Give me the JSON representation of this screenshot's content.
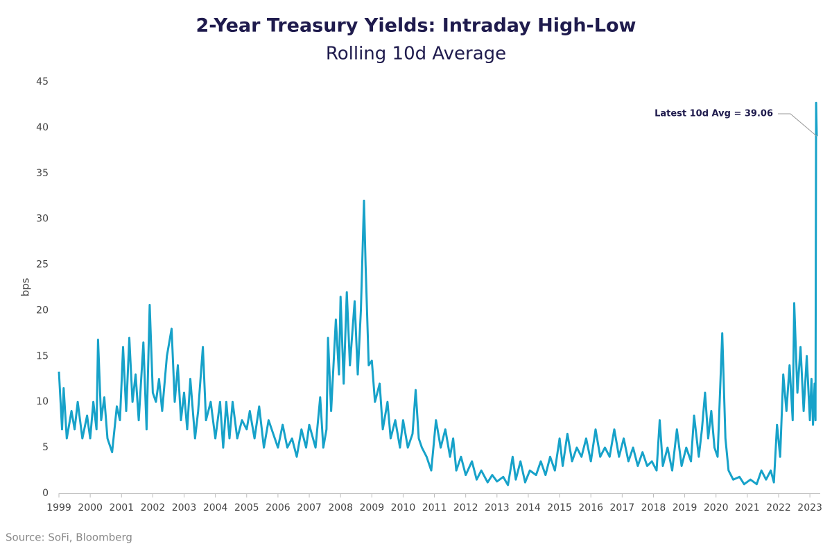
{
  "chart_data": {
    "type": "line",
    "title": "2-Year Treasury Yields: Intraday High-Low",
    "subtitle": "Rolling 10d Average",
    "y_label": "bps",
    "annotation": "Latest 10d Avg = 39.06",
    "source": "Source: SoFi, Bloomberg",
    "color": "#17a2c9",
    "grid": false,
    "xlim": [
      1999,
      2023.33
    ],
    "xticks": [
      1999,
      2000,
      2001,
      2002,
      2003,
      2004,
      2005,
      2006,
      2007,
      2008,
      2009,
      2010,
      2011,
      2012,
      2013,
      2014,
      2015,
      2016,
      2017,
      2018,
      2019,
      2020,
      2021,
      2022,
      2023
    ],
    "ylim": [
      0,
      45
    ],
    "yticks": [
      0,
      5,
      10,
      15,
      20,
      25,
      30,
      35,
      40,
      45
    ],
    "x": [
      1999.0,
      1999.1,
      1999.15,
      1999.25,
      1999.4,
      1999.5,
      1999.6,
      1999.75,
      1999.9,
      2000.0,
      2000.1,
      2000.2,
      2000.25,
      2000.35,
      2000.45,
      2000.55,
      2000.7,
      2000.85,
      2000.95,
      2001.0,
      2001.05,
      2001.15,
      2001.25,
      2001.35,
      2001.45,
      2001.55,
      2001.7,
      2001.8,
      2001.9,
      2002.0,
      2002.1,
      2002.2,
      2002.3,
      2002.45,
      2002.6,
      2002.7,
      2002.8,
      2002.9,
      2003.0,
      2003.1,
      2003.2,
      2003.35,
      2003.45,
      2003.6,
      2003.7,
      2003.85,
      2004.0,
      2004.15,
      2004.25,
      2004.35,
      2004.45,
      2004.55,
      2004.7,
      2004.85,
      2005.0,
      2005.1,
      2005.25,
      2005.4,
      2005.55,
      2005.7,
      2005.85,
      2006.0,
      2006.15,
      2006.3,
      2006.45,
      2006.6,
      2006.75,
      2006.9,
      2007.0,
      2007.2,
      2007.35,
      2007.45,
      2007.55,
      2007.6,
      2007.7,
      2007.85,
      2007.95,
      2008.0,
      2008.1,
      2008.2,
      2008.3,
      2008.45,
      2008.55,
      2008.65,
      2008.75,
      2008.8,
      2008.9,
      2009.0,
      2009.1,
      2009.25,
      2009.35,
      2009.5,
      2009.6,
      2009.75,
      2009.9,
      2010.0,
      2010.15,
      2010.3,
      2010.4,
      2010.5,
      2010.6,
      2010.75,
      2010.9,
      2011.05,
      2011.2,
      2011.35,
      2011.5,
      2011.6,
      2011.7,
      2011.85,
      2012.0,
      2012.2,
      2012.35,
      2012.5,
      2012.7,
      2012.85,
      2013.0,
      2013.2,
      2013.35,
      2013.5,
      2013.6,
      2013.75,
      2013.9,
      2014.05,
      2014.25,
      2014.4,
      2014.55,
      2014.7,
      2014.85,
      2015.0,
      2015.1,
      2015.25,
      2015.4,
      2015.55,
      2015.7,
      2015.85,
      2016.0,
      2016.15,
      2016.3,
      2016.45,
      2016.6,
      2016.75,
      2016.9,
      2017.05,
      2017.2,
      2017.35,
      2017.5,
      2017.65,
      2017.8,
      2017.95,
      2018.1,
      2018.2,
      2018.3,
      2018.45,
      2018.6,
      2018.75,
      2018.9,
      2019.05,
      2019.2,
      2019.3,
      2019.45,
      2019.55,
      2019.65,
      2019.75,
      2019.85,
      2019.95,
      2020.05,
      2020.2,
      2020.3,
      2020.4,
      2020.55,
      2020.75,
      2020.9,
      2021.1,
      2021.3,
      2021.45,
      2021.6,
      2021.75,
      2021.85,
      2021.95,
      2022.05,
      2022.15,
      2022.25,
      2022.35,
      2022.45,
      2022.5,
      2022.6,
      2022.7,
      2022.8,
      2022.9,
      2023.0,
      2023.05,
      2023.1,
      2023.15,
      2023.18,
      2023.2,
      2023.22
    ],
    "values": [
      13.3,
      7,
      11.5,
      6,
      9,
      7,
      10,
      6,
      8.5,
      6,
      10,
      7,
      16.8,
      8,
      10.5,
      6,
      4.5,
      9.5,
      8,
      12,
      16,
      9,
      17,
      10,
      13,
      8,
      16.5,
      7,
      20.6,
      11,
      10,
      12.5,
      9,
      15,
      18,
      10,
      14,
      8,
      11,
      7,
      12.5,
      6,
      9,
      16,
      8,
      10,
      6,
      10,
      5,
      10,
      6,
      10,
      6,
      8,
      7,
      9,
      6,
      9.5,
      5,
      8,
      6.5,
      5,
      7.5,
      5,
      6,
      4,
      7,
      5,
      7.5,
      5,
      10.5,
      5,
      7,
      17,
      9,
      19,
      13,
      21.5,
      12,
      22,
      14,
      21,
      13,
      20,
      32,
      25,
      14,
      14.5,
      10,
      12,
      7,
      10,
      6,
      8,
      5,
      8,
      5,
      6.5,
      11.3,
      6,
      5,
      4,
      2.5,
      8,
      5,
      7,
      4,
      6,
      2.5,
      4,
      2,
      3.5,
      1.5,
      2.5,
      1.2,
      2,
      1.3,
      1.8,
      0.9,
      4,
      1.5,
      3.5,
      1.2,
      2.5,
      2,
      3.5,
      2,
      4,
      2.5,
      6,
      3,
      6.5,
      3.5,
      5,
      4,
      6,
      3.5,
      7,
      4,
      5,
      4,
      7,
      4,
      6,
      3.5,
      5,
      3,
      4.5,
      3,
      3.5,
      2.5,
      8,
      3,
      5,
      2.5,
      7,
      3,
      5,
      3.5,
      8.5,
      4,
      7,
      11,
      6,
      9,
      5,
      4,
      17.5,
      6,
      2.5,
      1.5,
      1.8,
      1,
      1.5,
      1,
      2.5,
      1.5,
      2.5,
      1.2,
      7.5,
      4,
      13,
      9,
      14,
      8,
      20.8,
      11,
      16,
      9,
      15,
      8,
      12.5,
      7.5,
      12,
      8,
      42.7,
      39.06
    ]
  }
}
